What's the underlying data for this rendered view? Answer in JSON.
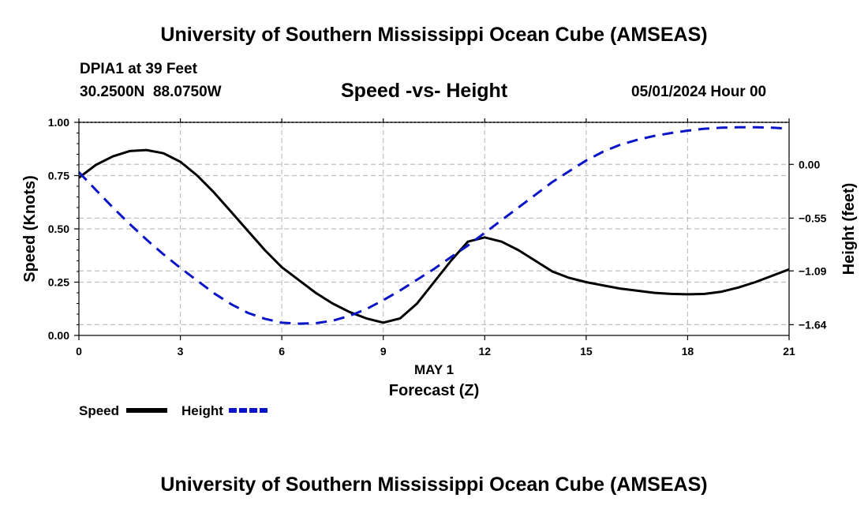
{
  "header": {
    "title": "University of Southern Mississippi Ocean Cube (AMSEAS)",
    "station": "DPIA1 at 39 Feet",
    "coordinates": "30.2500N  88.0750W",
    "subtitle": "Speed -vs- Height",
    "datetime": "05/01/2024 Hour 00"
  },
  "footer": {
    "title": "University of Southern Mississippi Ocean Cube (AMSEAS)"
  },
  "chart_data": {
    "type": "line",
    "title": "Speed -vs- Height",
    "xlabel": "Forecast (Z)",
    "xlabel_date": "MAY 1",
    "ylabel": "Speed (Knots)",
    "y2label": "Height (feet)",
    "xlim": [
      0,
      21
    ],
    "ylim": [
      0,
      1
    ],
    "y2lim": [
      -1.75,
      0.43
    ],
    "x_ticks": [
      0,
      3,
      6,
      9,
      12,
      15,
      18,
      21
    ],
    "x_tick_labels": [
      "0",
      "3",
      "6",
      "9",
      "12",
      "15",
      "18",
      "21"
    ],
    "y_ticks": [
      0,
      0.25,
      0.5,
      0.75,
      1.0
    ],
    "y_tick_labels": [
      "0.00",
      "0.25",
      "0.50",
      "0.75",
      "1.00"
    ],
    "y2_ticks": [
      0.0,
      -0.55,
      -1.09,
      -1.64
    ],
    "y2_tick_labels": [
      "0.00",
      "−0.55",
      "−1.09",
      "−1.64"
    ],
    "grid": true,
    "legend": [
      {
        "label": "Speed",
        "color": "#000000",
        "style": "solid"
      },
      {
        "label": "Height",
        "color": "#0a14c8",
        "style": "dashed"
      }
    ],
    "series": [
      {
        "name": "Speed",
        "axis": "left",
        "color": "#000000",
        "style": "solid",
        "x": [
          0,
          0.5,
          1,
          1.5,
          2,
          2.5,
          3,
          3.5,
          4,
          4.5,
          5,
          5.5,
          6,
          6.5,
          7,
          7.5,
          8,
          8.5,
          9,
          9.5,
          10,
          10.5,
          11,
          11.5,
          12,
          12.5,
          13,
          13.5,
          14,
          14.5,
          15,
          15.5,
          16,
          16.5,
          17,
          17.5,
          18,
          18.5,
          19,
          19.5,
          20,
          20.5,
          21
        ],
        "values": [
          0.74,
          0.8,
          0.84,
          0.865,
          0.87,
          0.855,
          0.815,
          0.75,
          0.67,
          0.58,
          0.49,
          0.4,
          0.32,
          0.26,
          0.2,
          0.15,
          0.11,
          0.08,
          0.06,
          0.08,
          0.15,
          0.25,
          0.35,
          0.44,
          0.46,
          0.44,
          0.4,
          0.35,
          0.3,
          0.27,
          0.25,
          0.235,
          0.22,
          0.21,
          0.2,
          0.195,
          0.193,
          0.195,
          0.205,
          0.225,
          0.25,
          0.28,
          0.31
        ]
      },
      {
        "name": "Height",
        "axis": "right",
        "color": "#0a14c8",
        "style": "dashed",
        "x": [
          0,
          0.5,
          1,
          1.5,
          2,
          2.5,
          3,
          3.5,
          4,
          4.5,
          5,
          5.5,
          6,
          6.5,
          7,
          7.5,
          8,
          8.5,
          9,
          9.5,
          10,
          10.5,
          11,
          11.5,
          12,
          12.5,
          13,
          13.5,
          14,
          14.5,
          15,
          15.5,
          16,
          16.5,
          17,
          17.5,
          18,
          18.5,
          19,
          19.5,
          20,
          20.5,
          21
        ],
        "values": [
          -0.08,
          -0.26,
          -0.44,
          -0.61,
          -0.77,
          -0.92,
          -1.06,
          -1.19,
          -1.32,
          -1.43,
          -1.52,
          -1.58,
          -1.62,
          -1.63,
          -1.625,
          -1.6,
          -1.55,
          -1.48,
          -1.39,
          -1.29,
          -1.18,
          -1.07,
          -0.95,
          -0.83,
          -0.7,
          -0.57,
          -0.44,
          -0.31,
          -0.18,
          -0.07,
          0.04,
          0.13,
          0.2,
          0.25,
          0.29,
          0.32,
          0.345,
          0.365,
          0.375,
          0.38,
          0.38,
          0.375,
          0.365
        ]
      }
    ]
  }
}
